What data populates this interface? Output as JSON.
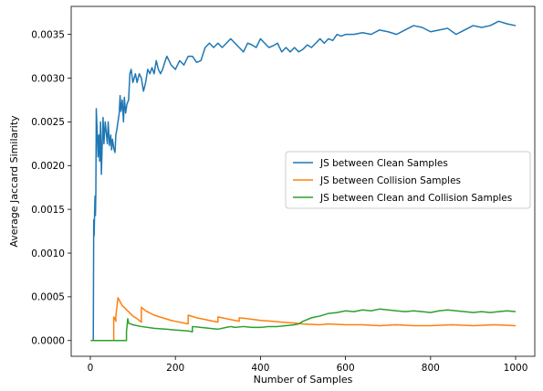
{
  "chart_data": {
    "type": "line",
    "xlabel": "Number of Samples",
    "ylabel": "Average Jaccard Similarity",
    "xlim": [
      -45,
      1045
    ],
    "ylim": [
      -0.00018,
      0.00382
    ],
    "xticks": [
      0,
      200,
      400,
      600,
      800,
      1000
    ],
    "yticks": [
      0.0,
      0.0005,
      0.001,
      0.0015,
      0.002,
      0.0025,
      0.003,
      0.0035
    ],
    "ytick_labels": [
      "0.0000",
      "0.0005",
      "0.0010",
      "0.0015",
      "0.0020",
      "0.0025",
      "0.0030",
      "0.0035"
    ],
    "grid": false,
    "legend": {
      "position": "center-right"
    },
    "series": [
      {
        "name": "JS between Clean Samples",
        "color": "#1f77b4",
        "x": [
          1,
          7,
          8,
          9,
          10,
          11,
          12,
          13,
          14,
          16,
          18,
          20,
          22,
          24,
          26,
          28,
          30,
          32,
          35,
          38,
          40,
          42,
          45,
          48,
          50,
          52,
          55,
          58,
          60,
          62,
          65,
          68,
          70,
          72,
          75,
          78,
          80,
          83,
          86,
          90,
          93,
          96,
          100,
          103,
          106,
          110,
          115,
          120,
          125,
          130,
          135,
          140,
          145,
          150,
          155,
          160,
          165,
          170,
          175,
          180,
          190,
          200,
          210,
          220,
          230,
          240,
          250,
          260,
          270,
          280,
          290,
          300,
          310,
          320,
          330,
          340,
          350,
          360,
          370,
          380,
          390,
          400,
          410,
          420,
          430,
          440,
          450,
          460,
          470,
          480,
          490,
          500,
          510,
          520,
          530,
          540,
          550,
          560,
          570,
          580,
          590,
          600,
          620,
          640,
          660,
          680,
          700,
          720,
          740,
          760,
          780,
          800,
          820,
          840,
          860,
          880,
          900,
          920,
          940,
          960,
          980,
          1000
        ],
        "y": [
          0.0,
          0.0,
          0.00138,
          0.0012,
          0.00145,
          0.00165,
          0.00143,
          0.0017,
          0.00265,
          0.0024,
          0.0021,
          0.00235,
          0.00205,
          0.0025,
          0.0019,
          0.00225,
          0.00255,
          0.00225,
          0.0025,
          0.00235,
          0.00225,
          0.0025,
          0.00223,
          0.00235,
          0.00218,
          0.0023,
          0.0022,
          0.00215,
          0.00235,
          0.0024,
          0.0025,
          0.0026,
          0.0028,
          0.00262,
          0.00275,
          0.0025,
          0.00278,
          0.0026,
          0.0027,
          0.00275,
          0.00305,
          0.0031,
          0.00295,
          0.003,
          0.00305,
          0.00295,
          0.00305,
          0.003,
          0.00285,
          0.00295,
          0.0031,
          0.00305,
          0.00312,
          0.00305,
          0.0032,
          0.0031,
          0.00305,
          0.0031,
          0.00318,
          0.00325,
          0.00315,
          0.0031,
          0.0032,
          0.00315,
          0.00325,
          0.00325,
          0.00318,
          0.0032,
          0.00335,
          0.0034,
          0.00335,
          0.0034,
          0.00335,
          0.0034,
          0.00345,
          0.0034,
          0.00335,
          0.0033,
          0.0034,
          0.00338,
          0.00335,
          0.00345,
          0.0034,
          0.00335,
          0.00337,
          0.0034,
          0.0033,
          0.00335,
          0.0033,
          0.00335,
          0.0033,
          0.00333,
          0.00338,
          0.00335,
          0.0034,
          0.00345,
          0.0034,
          0.00345,
          0.00343,
          0.0035,
          0.00348,
          0.0035,
          0.0035,
          0.00352,
          0.0035,
          0.00355,
          0.00353,
          0.0035,
          0.00355,
          0.0036,
          0.00358,
          0.00353,
          0.00355,
          0.00357,
          0.0035,
          0.00355,
          0.0036,
          0.00358,
          0.0036,
          0.00365,
          0.00362,
          0.0036
        ]
      },
      {
        "name": "JS between Collision Samples",
        "color": "#ff7f0e",
        "x": [
          1,
          55,
          55,
          58,
          60,
          60,
          65,
          75,
          90,
          100,
          110,
          120,
          120,
          130,
          150,
          170,
          190,
          200,
          220,
          230,
          230,
          250,
          270,
          280,
          300,
          300,
          320,
          340,
          350,
          350,
          370,
          400,
          430,
          450,
          480,
          500,
          540,
          560,
          600,
          640,
          680,
          720,
          760,
          800,
          850,
          900,
          950,
          1000
        ],
        "y": [
          0.0,
          0.0,
          0.00027,
          0.00025,
          0.00022,
          0.00028,
          0.00049,
          0.0004,
          0.00033,
          0.00028,
          0.00025,
          0.00021,
          0.00038,
          0.00034,
          0.00029,
          0.00026,
          0.00023,
          0.00022,
          0.0002,
          0.00019,
          0.00029,
          0.00026,
          0.00024,
          0.00023,
          0.00021,
          0.00027,
          0.00025,
          0.00023,
          0.00022,
          0.00026,
          0.00025,
          0.00023,
          0.00022,
          0.00021,
          0.0002,
          0.00019,
          0.00018,
          0.00019,
          0.00018,
          0.00018,
          0.00017,
          0.00018,
          0.00017,
          0.00017,
          0.00018,
          0.00017,
          0.00018,
          0.00017
        ]
      },
      {
        "name": "JS between Clean and Collision Samples",
        "color": "#2ca02c",
        "x": [
          1,
          85,
          85,
          88,
          90,
          100,
          120,
          150,
          180,
          200,
          230,
          240,
          240,
          260,
          280,
          300,
          320,
          330,
          340,
          360,
          380,
          400,
          420,
          440,
          460,
          480,
          490,
          500,
          510,
          520,
          530,
          540,
          560,
          580,
          600,
          620,
          640,
          660,
          680,
          700,
          720,
          740,
          760,
          780,
          800,
          820,
          840,
          860,
          880,
          900,
          920,
          940,
          960,
          980,
          1000
        ],
        "y": [
          0.0,
          0.0,
          0.0001,
          0.00025,
          0.0002,
          0.00018,
          0.00016,
          0.00014,
          0.00013,
          0.00012,
          0.00011,
          0.0001,
          0.00016,
          0.00015,
          0.00014,
          0.00013,
          0.00015,
          0.00016,
          0.00015,
          0.00016,
          0.00015,
          0.00015,
          0.00016,
          0.00016,
          0.00017,
          0.00018,
          0.00019,
          0.00022,
          0.00024,
          0.00026,
          0.00027,
          0.00028,
          0.00031,
          0.00032,
          0.00034,
          0.00033,
          0.00035,
          0.00034,
          0.00036,
          0.00035,
          0.00034,
          0.00033,
          0.00034,
          0.00033,
          0.00032,
          0.00034,
          0.00035,
          0.00034,
          0.00033,
          0.00032,
          0.00033,
          0.00032,
          0.00033,
          0.00034,
          0.00033
        ]
      }
    ]
  }
}
